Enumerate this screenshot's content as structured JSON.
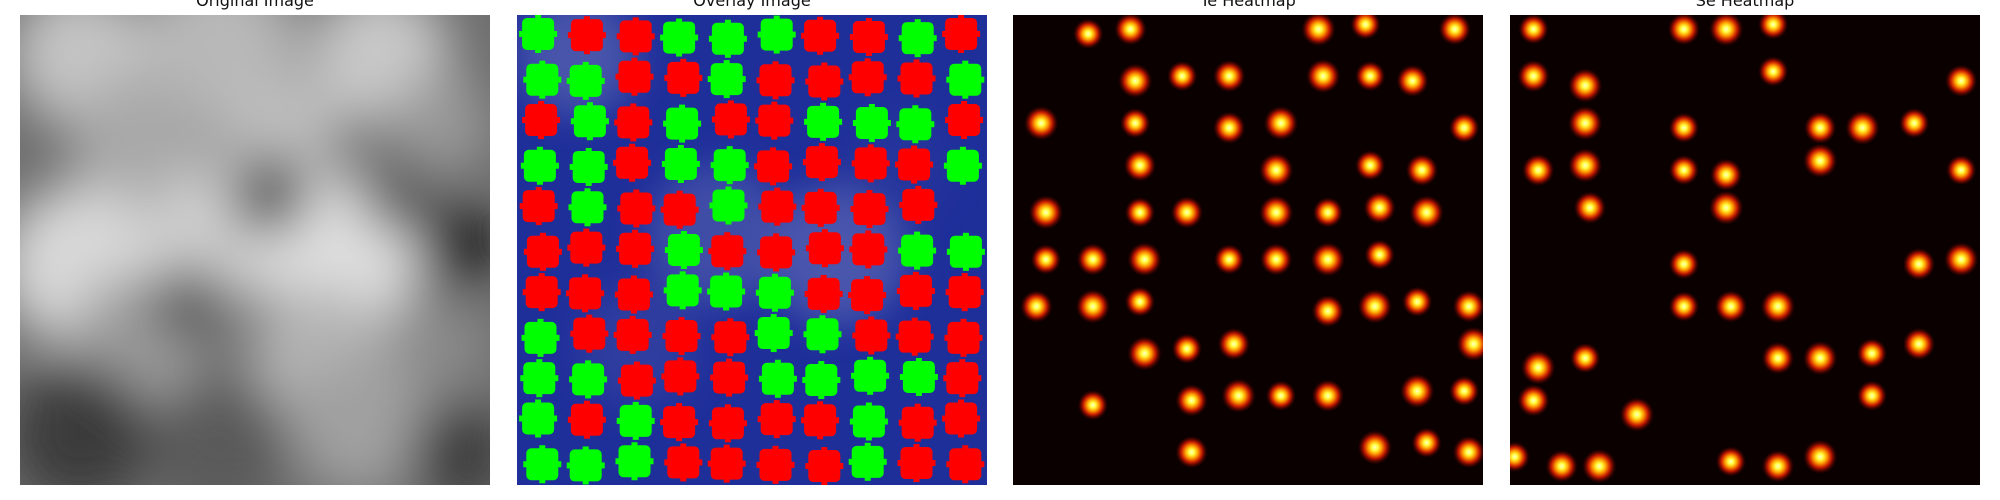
{
  "panels": [
    {
      "id": "original",
      "title": "Original Image",
      "kind": "grayscale"
    },
    {
      "id": "overlay",
      "title": "Overlay Image",
      "kind": "overlay",
      "colors": {
        "background": "#1f2f9a",
        "type_a": "#ff0000",
        "type_b": "#00ff00"
      }
    },
    {
      "id": "te",
      "title": "Te Heatmap",
      "kind": "heatmap",
      "colors": {
        "background": "#0b0000"
      }
    },
    {
      "id": "se",
      "title": "Se Heatmap",
      "kind": "heatmap",
      "colors": {
        "background": "#0b0000"
      }
    }
  ],
  "overlay_grid": [
    "GRRGGGRRGR",
    "GGRRGRRRRG",
    "RGRGRRGGGR",
    "GGRGGRRRRG",
    "RGRRGRRRR.",
    "RRRGRRRRGG",
    "RRRGGGRRRR",
    "GRRRRGGRRR",
    "GGRRRGGGGR",
    "GRGRRRRGRR",
    "GGGRRRRGRR"
  ],
  "te_spots": [
    [
      0.16,
      0.04
    ],
    [
      0.25,
      0.03
    ],
    [
      0.65,
      0.03
    ],
    [
      0.75,
      0.02
    ],
    [
      0.94,
      0.03
    ],
    [
      0.26,
      0.14
    ],
    [
      0.36,
      0.13
    ],
    [
      0.46,
      0.13
    ],
    [
      0.66,
      0.13
    ],
    [
      0.76,
      0.13
    ],
    [
      0.85,
      0.14
    ],
    [
      0.06,
      0.23
    ],
    [
      0.26,
      0.23
    ],
    [
      0.46,
      0.24
    ],
    [
      0.57,
      0.23
    ],
    [
      0.96,
      0.24
    ],
    [
      0.27,
      0.32
    ],
    [
      0.56,
      0.33
    ],
    [
      0.76,
      0.32
    ],
    [
      0.87,
      0.33
    ],
    [
      0.07,
      0.42
    ],
    [
      0.27,
      0.42
    ],
    [
      0.37,
      0.42
    ],
    [
      0.56,
      0.42
    ],
    [
      0.67,
      0.42
    ],
    [
      0.78,
      0.41
    ],
    [
      0.88,
      0.42
    ],
    [
      0.07,
      0.52
    ],
    [
      0.17,
      0.52
    ],
    [
      0.28,
      0.52
    ],
    [
      0.46,
      0.52
    ],
    [
      0.56,
      0.52
    ],
    [
      0.67,
      0.52
    ],
    [
      0.78,
      0.51
    ],
    [
      0.05,
      0.62
    ],
    [
      0.17,
      0.62
    ],
    [
      0.27,
      0.61
    ],
    [
      0.67,
      0.63
    ],
    [
      0.77,
      0.62
    ],
    [
      0.86,
      0.61
    ],
    [
      0.97,
      0.62
    ],
    [
      0.28,
      0.72
    ],
    [
      0.37,
      0.71
    ],
    [
      0.47,
      0.7
    ],
    [
      0.98,
      0.7
    ],
    [
      0.17,
      0.83
    ],
    [
      0.38,
      0.82
    ],
    [
      0.48,
      0.81
    ],
    [
      0.57,
      0.81
    ],
    [
      0.67,
      0.81
    ],
    [
      0.86,
      0.8
    ],
    [
      0.96,
      0.8
    ],
    [
      0.38,
      0.93
    ],
    [
      0.77,
      0.92
    ],
    [
      0.88,
      0.91
    ],
    [
      0.97,
      0.93
    ]
  ],
  "se_spots": [
    [
      0.05,
      0.03
    ],
    [
      0.37,
      0.03
    ],
    [
      0.46,
      0.03
    ],
    [
      0.56,
      0.02
    ],
    [
      0.05,
      0.13
    ],
    [
      0.16,
      0.15
    ],
    [
      0.56,
      0.12
    ],
    [
      0.96,
      0.14
    ],
    [
      0.16,
      0.23
    ],
    [
      0.37,
      0.24
    ],
    [
      0.66,
      0.24
    ],
    [
      0.75,
      0.24
    ],
    [
      0.86,
      0.23
    ],
    [
      0.06,
      0.33
    ],
    [
      0.16,
      0.32
    ],
    [
      0.37,
      0.33
    ],
    [
      0.46,
      0.34
    ],
    [
      0.66,
      0.31
    ],
    [
      0.96,
      0.33
    ],
    [
      0.17,
      0.41
    ],
    [
      0.46,
      0.41
    ],
    [
      0.37,
      0.53
    ],
    [
      0.87,
      0.53
    ],
    [
      0.96,
      0.52
    ],
    [
      0.37,
      0.62
    ],
    [
      0.47,
      0.62
    ],
    [
      0.57,
      0.62
    ],
    [
      0.16,
      0.73
    ],
    [
      0.57,
      0.73
    ],
    [
      0.66,
      0.73
    ],
    [
      0.77,
      0.72
    ],
    [
      0.87,
      0.7
    ],
    [
      0.06,
      0.75
    ],
    [
      0.77,
      0.81
    ],
    [
      0.05,
      0.82
    ],
    [
      0.27,
      0.85
    ],
    [
      0.01,
      0.94
    ],
    [
      0.11,
      0.96
    ],
    [
      0.19,
      0.96
    ],
    [
      0.47,
      0.95
    ],
    [
      0.57,
      0.96
    ],
    [
      0.66,
      0.94
    ]
  ]
}
